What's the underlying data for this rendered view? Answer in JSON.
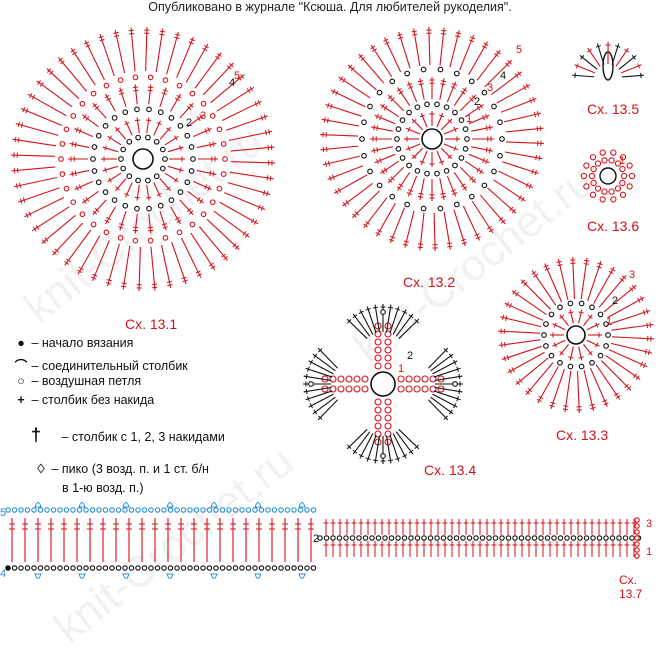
{
  "header": {
    "text": "Опубликовано в журнале \"Ксюша. Для любителей рукоделия\"."
  },
  "watermark": "knit-Crochet.ru",
  "captions": {
    "c1": "Сх. 13.1",
    "c2": "Сх. 13.2",
    "c3": "Сх. 13.3",
    "c4": "Сх. 13.4",
    "c5": "Сх. 13.5",
    "c6": "Сх. 13.6",
    "c7": "Сх. 13.7"
  },
  "row_numbers": {
    "r1": "1",
    "r2": "2",
    "r3": "3",
    "r4": "4",
    "r5": "5"
  },
  "legend": [
    {
      "icon": "filled-dot-icon",
      "symbol": "●",
      "label": "– начало вязания"
    },
    {
      "icon": "arc-icon",
      "symbol": "⌒",
      "label": "– соединительный столбик"
    },
    {
      "icon": "open-circle-icon",
      "symbol": "○",
      "label": "– воздушная петля"
    },
    {
      "icon": "cross-icon",
      "symbol": "+",
      "label": "– столбик без накида"
    },
    {
      "icon": "tall-stitch-icon",
      "symbol": "†",
      "label": "– столбик с 1, 2, 3 накидами"
    },
    {
      "icon": "picot-icon",
      "symbol": "♢",
      "label": "– пико (3 возд. п. и 1 ст. б/н"
    },
    {
      "icon": "",
      "symbol": "",
      "label": "в 1-ю возд. п.)"
    }
  ],
  "colors": {
    "accent": "#d4121a",
    "ink": "#111111",
    "picot": "#2a8fd6"
  }
}
